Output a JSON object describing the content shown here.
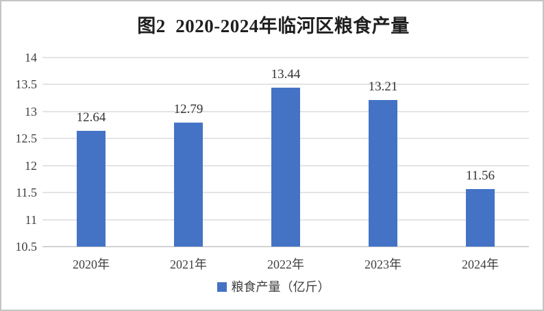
{
  "chart_data": {
    "type": "bar",
    "title": "图2  2020-2024年临河区粮食产量",
    "categories": [
      "2020年",
      "2021年",
      "2022年",
      "2023年",
      "2024年"
    ],
    "series": [
      {
        "name": "粮食产量（亿斤）",
        "values": [
          12.64,
          12.79,
          13.44,
          13.21,
          11.56
        ],
        "data_labels": [
          "12.64",
          "12.79",
          "13.44",
          "13.21",
          "11.56"
        ]
      }
    ],
    "ylim": [
      10.5,
      14
    ],
    "yticks": [
      10.5,
      11,
      11.5,
      12,
      12.5,
      13,
      13.5,
      14
    ],
    "ytick_labels": [
      "10.5",
      "11",
      "11.5",
      "12",
      "12.5",
      "13",
      "13.5",
      "14"
    ],
    "grid": true,
    "legend": {
      "position": "bottom",
      "entries": [
        "粮食产量（亿斤）"
      ]
    },
    "colors": {
      "bar": "#4472c4",
      "gridline": "#e4e4e4",
      "axis_line": "#d2d2d2",
      "title_text": "#1f1f1f",
      "tick_text": "#3f3f3f",
      "data_label_text": "#333333"
    }
  }
}
